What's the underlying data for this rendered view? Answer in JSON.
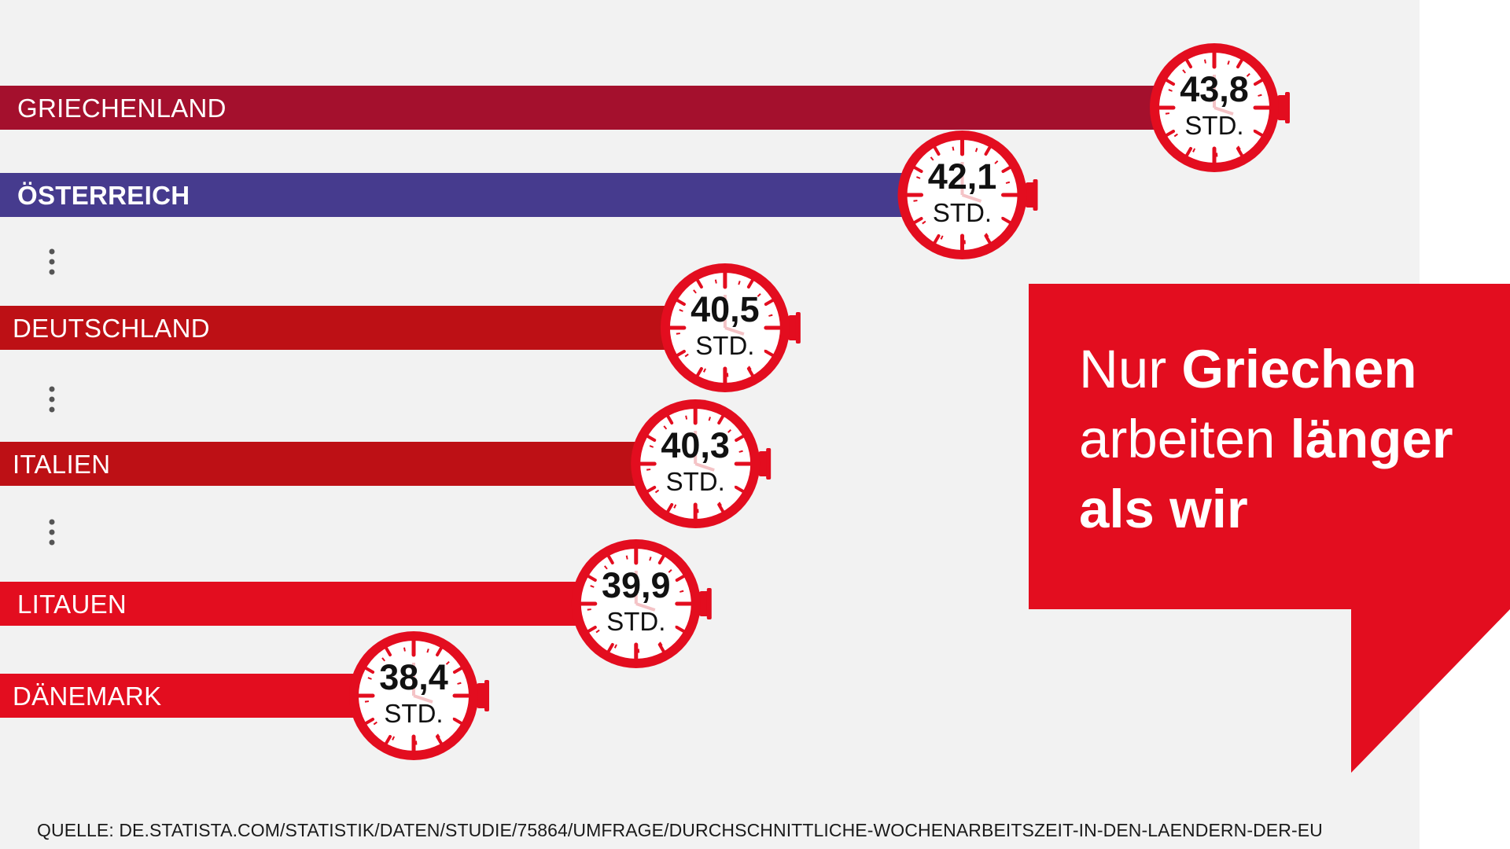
{
  "chart_data": {
    "type": "bar",
    "orientation": "horizontal",
    "categories": [
      "GRIECHENLAND",
      "ÖSTERREICH",
      "DEUTSCHLAND",
      "ITALIEN",
      "LITAUEN",
      "DÄNEMARK"
    ],
    "values": [
      43.8,
      42.1,
      40.5,
      40.3,
      39.9,
      38.4
    ],
    "value_labels": [
      "43,8",
      "42,1",
      "40,5",
      "40,3",
      "39,9",
      "38,4"
    ],
    "unit": "STD.",
    "highlight": "ÖSTERREICH",
    "gaps_after": [
      "ÖSTERREICH",
      "DEUTSCHLAND",
      "ITALIEN"
    ],
    "bar_colors": [
      "#a4102d",
      "#463b8e",
      "#bd1015",
      "#bd1015",
      "#e30d1f",
      "#e30d1f"
    ],
    "clock_color": "#e30d1f"
  },
  "headline": {
    "line1_regular": "Nur ",
    "line1_bold": "Griechen",
    "line2_regular": "arbeiten ",
    "line2_bold": "länger",
    "line3_bold": "als wir"
  },
  "source": "QUELLE: DE.STATISTA.COM/STATISTIK/DATEN/STUDIE/75864/UMFRAGE/DURCHSCHNITTLICHE-WOCHENARBEITSZEIT-IN-DEN-LAENDERN-DER-EU",
  "colors": {
    "background": "#f2f2f2",
    "accent": "#e30d1f"
  }
}
